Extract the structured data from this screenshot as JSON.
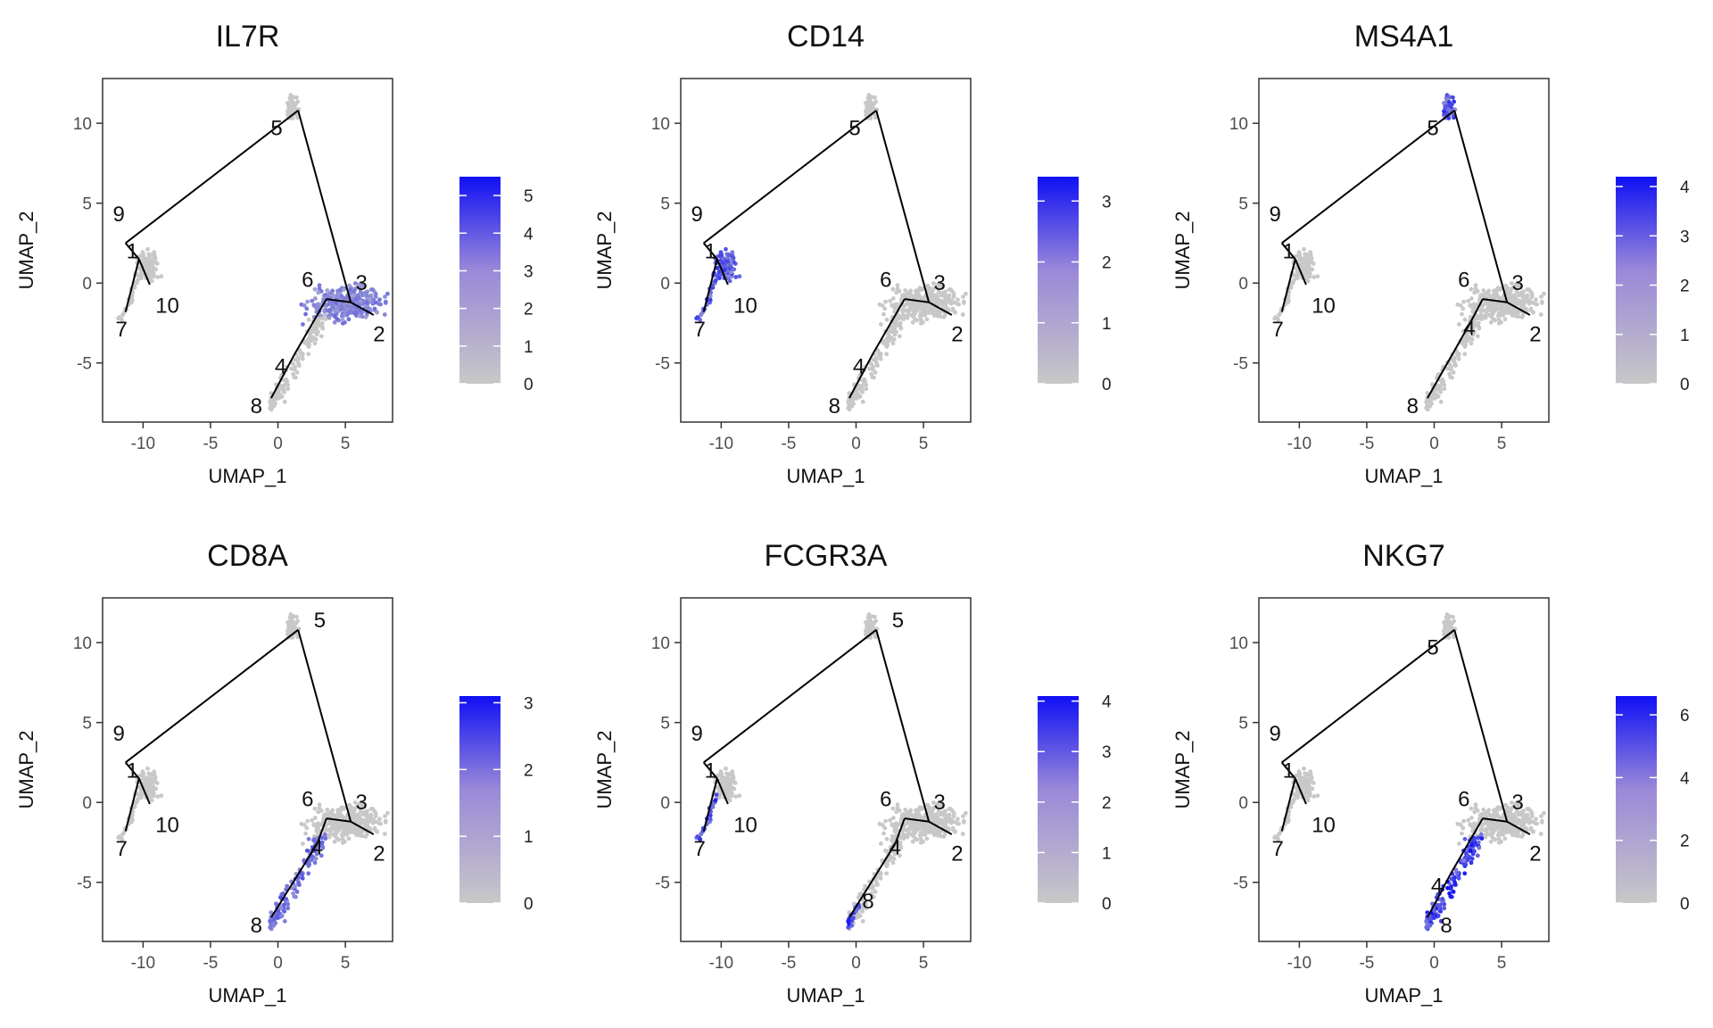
{
  "colors": {
    "low": "#c8c8c8",
    "high": "#1010f5",
    "path": "#000000",
    "frame": "#333333"
  },
  "chart_data": [
    {
      "type": "scatter",
      "title": "IL7R",
      "xlabel": "UMAP_1",
      "ylabel": "UMAP_2",
      "xlim": [
        -13,
        8.5
      ],
      "ylim": [
        -8.7,
        12.8
      ],
      "xticks": [
        -10,
        -5,
        0,
        5
      ],
      "yticks": [
        -5,
        0,
        5,
        10
      ],
      "colorbar": {
        "max": 5.5,
        "ticks": [
          0,
          1,
          2,
          3,
          4,
          5
        ]
      },
      "highlight": {
        "cluster": "hub",
        "level": 0.35
      },
      "nodes": [
        {
          "label": "1",
          "x": -10.3,
          "y": 1.5,
          "ann_x": -10.8,
          "ann_y": 2.0
        },
        {
          "label": "2",
          "x": 7.1,
          "y": -2.0,
          "ann_x": 7.5,
          "ann_y": -3.2
        },
        {
          "label": "3",
          "x": 5.4,
          "y": -1.2,
          "ann_x": 6.2,
          "ann_y": 0.0
        },
        {
          "label": "4",
          "x": 1.2,
          "y": -4.5,
          "ann_x": 0.2,
          "ann_y": -5.2
        },
        {
          "label": "5",
          "x": 1.5,
          "y": 10.8,
          "ann_x": -0.1,
          "ann_y": 9.7
        },
        {
          "label": "6",
          "x": 3.6,
          "y": -1.0,
          "ann_x": 2.2,
          "ann_y": 0.2
        },
        {
          "label": "7",
          "x": -11.3,
          "y": -1.8,
          "ann_x": -11.6,
          "ann_y": -2.9
        },
        {
          "label": "8",
          "x": -0.5,
          "y": -7.2,
          "ann_x": -1.6,
          "ann_y": -7.7
        },
        {
          "label": "9",
          "x": -11.3,
          "y": 2.5,
          "ann_x": -11.8,
          "ann_y": 4.3
        },
        {
          "label": "10",
          "x": -9.5,
          "y": -0.1,
          "ann_x": -8.2,
          "ann_y": -1.4
        }
      ]
    },
    {
      "type": "scatter",
      "title": "CD14",
      "xlabel": "UMAP_1",
      "ylabel": "UMAP_2",
      "xlim": [
        -13,
        8.5
      ],
      "ylim": [
        -8.7,
        12.8
      ],
      "xticks": [
        -10,
        -5,
        0,
        5
      ],
      "yticks": [
        -5,
        0,
        5,
        10
      ],
      "colorbar": {
        "max": 3.4,
        "ticks": [
          0,
          1,
          2,
          3
        ]
      },
      "highlight": {
        "cluster": "left",
        "level": 0.55
      },
      "nodes": [
        {
          "label": "1",
          "x": -10.3,
          "y": 1.5,
          "ann_x": -10.8,
          "ann_y": 2.0
        },
        {
          "label": "2",
          "x": 7.1,
          "y": -2.0,
          "ann_x": 7.5,
          "ann_y": -3.2
        },
        {
          "label": "3",
          "x": 5.4,
          "y": -1.2,
          "ann_x": 6.2,
          "ann_y": 0.0
        },
        {
          "label": "4",
          "x": 1.2,
          "y": -4.5,
          "ann_x": 0.2,
          "ann_y": -5.2
        },
        {
          "label": "5",
          "x": 1.5,
          "y": 10.8,
          "ann_x": -0.1,
          "ann_y": 9.7
        },
        {
          "label": "6",
          "x": 3.6,
          "y": -1.0,
          "ann_x": 2.2,
          "ann_y": 0.2
        },
        {
          "label": "7",
          "x": -11.3,
          "y": -1.8,
          "ann_x": -11.6,
          "ann_y": -2.9
        },
        {
          "label": "8",
          "x": -0.5,
          "y": -7.2,
          "ann_x": -1.6,
          "ann_y": -7.7
        },
        {
          "label": "9",
          "x": -11.3,
          "y": 2.5,
          "ann_x": -11.8,
          "ann_y": 4.3
        },
        {
          "label": "10",
          "x": -9.5,
          "y": -0.1,
          "ann_x": -8.2,
          "ann_y": -1.4
        }
      ]
    },
    {
      "type": "scatter",
      "title": "MS4A1",
      "xlabel": "UMAP_1",
      "ylabel": "UMAP_2",
      "xlim": [
        -13,
        8.5
      ],
      "ylim": [
        -8.7,
        12.8
      ],
      "xticks": [
        -10,
        -5,
        0,
        5
      ],
      "yticks": [
        -5,
        0,
        5,
        10
      ],
      "colorbar": {
        "max": 4.2,
        "ticks": [
          0,
          1,
          2,
          3,
          4
        ]
      },
      "highlight": {
        "cluster": "top",
        "level": 0.6
      },
      "nodes": [
        {
          "label": "1",
          "x": -10.3,
          "y": 1.5,
          "ann_x": -10.8,
          "ann_y": 2.0
        },
        {
          "label": "2",
          "x": 7.1,
          "y": -2.0,
          "ann_x": 7.5,
          "ann_y": -3.2
        },
        {
          "label": "3",
          "x": 5.4,
          "y": -1.2,
          "ann_x": 6.2,
          "ann_y": 0.0
        },
        {
          "label": "4",
          "x": 2.6,
          "y": -2.6,
          "ann_x": 2.6,
          "ann_y": -2.8
        },
        {
          "label": "5",
          "x": 1.5,
          "y": 10.8,
          "ann_x": -0.1,
          "ann_y": 9.7
        },
        {
          "label": "6",
          "x": 3.6,
          "y": -1.0,
          "ann_x": 2.2,
          "ann_y": 0.2
        },
        {
          "label": "7",
          "x": -11.3,
          "y": -1.8,
          "ann_x": -11.6,
          "ann_y": -2.9
        },
        {
          "label": "8",
          "x": -0.5,
          "y": -7.2,
          "ann_x": -1.6,
          "ann_y": -7.7
        },
        {
          "label": "9",
          "x": -11.3,
          "y": 2.5,
          "ann_x": -11.8,
          "ann_y": 4.3
        },
        {
          "label": "10",
          "x": -9.5,
          "y": -0.1,
          "ann_x": -8.2,
          "ann_y": -1.4
        }
      ]
    },
    {
      "type": "scatter",
      "title": "CD8A",
      "xlabel": "UMAP_1",
      "ylabel": "UMAP_2",
      "xlim": [
        -13,
        8.5
      ],
      "ylim": [
        -8.7,
        12.8
      ],
      "xticks": [
        -10,
        -5,
        0,
        5
      ],
      "yticks": [
        -5,
        0,
        5,
        10
      ],
      "colorbar": {
        "max": 3.1,
        "ticks": [
          0,
          1,
          2,
          3
        ]
      },
      "highlight": {
        "cluster": "lower",
        "level": 0.45
      },
      "nodes": [
        {
          "label": "1",
          "x": -10.3,
          "y": 1.5,
          "ann_x": -10.8,
          "ann_y": 2.0
        },
        {
          "label": "2",
          "x": 7.1,
          "y": -2.0,
          "ann_x": 7.5,
          "ann_y": -3.2
        },
        {
          "label": "3",
          "x": 5.4,
          "y": -1.2,
          "ann_x": 6.2,
          "ann_y": 0.0
        },
        {
          "label": "4",
          "x": 2.9,
          "y": -2.6,
          "ann_x": 2.9,
          "ann_y": -2.8
        },
        {
          "label": "5",
          "x": 1.5,
          "y": 10.8,
          "ann_x": 3.1,
          "ann_y": 11.4
        },
        {
          "label": "6",
          "x": 3.6,
          "y": -1.0,
          "ann_x": 2.2,
          "ann_y": 0.2
        },
        {
          "label": "7",
          "x": -11.3,
          "y": -1.8,
          "ann_x": -11.6,
          "ann_y": -2.9
        },
        {
          "label": "8",
          "x": -0.5,
          "y": -7.2,
          "ann_x": -1.6,
          "ann_y": -7.7
        },
        {
          "label": "9",
          "x": -11.3,
          "y": 2.5,
          "ann_x": -11.8,
          "ann_y": 4.3
        },
        {
          "label": "10",
          "x": -9.5,
          "y": -0.1,
          "ann_x": -8.2,
          "ann_y": -1.4
        }
      ]
    },
    {
      "type": "scatter",
      "title": "FCGR3A",
      "xlabel": "UMAP_1",
      "ylabel": "UMAP_2",
      "xlim": [
        -13,
        8.5
      ],
      "ylim": [
        -8.7,
        12.8
      ],
      "xticks": [
        -10,
        -5,
        0,
        5
      ],
      "yticks": [
        -5,
        0,
        5,
        10
      ],
      "colorbar": {
        "max": 4.1,
        "ticks": [
          0,
          1,
          2,
          3,
          4
        ]
      },
      "highlight": {
        "cluster": "tails",
        "level": 0.65
      },
      "nodes": [
        {
          "label": "1",
          "x": -10.3,
          "y": 1.5,
          "ann_x": -10.8,
          "ann_y": 2.0
        },
        {
          "label": "2",
          "x": 7.1,
          "y": -2.0,
          "ann_x": 7.5,
          "ann_y": -3.2
        },
        {
          "label": "3",
          "x": 5.4,
          "y": -1.2,
          "ann_x": 6.2,
          "ann_y": 0.0
        },
        {
          "label": "4",
          "x": 2.9,
          "y": -2.6,
          "ann_x": 2.9,
          "ann_y": -2.8
        },
        {
          "label": "5",
          "x": 1.5,
          "y": 10.8,
          "ann_x": 3.1,
          "ann_y": 11.4
        },
        {
          "label": "6",
          "x": 3.6,
          "y": -1.0,
          "ann_x": 2.2,
          "ann_y": 0.2
        },
        {
          "label": "7",
          "x": -11.3,
          "y": -1.8,
          "ann_x": -11.6,
          "ann_y": -2.9
        },
        {
          "label": "8",
          "x": -0.5,
          "y": -7.2,
          "ann_x": 0.9,
          "ann_y": -6.2
        },
        {
          "label": "9",
          "x": -11.3,
          "y": 2.5,
          "ann_x": -11.8,
          "ann_y": 4.3
        },
        {
          "label": "10",
          "x": -9.5,
          "y": -0.1,
          "ann_x": -8.2,
          "ann_y": -1.4
        }
      ]
    },
    {
      "type": "scatter",
      "title": "NKG7",
      "xlabel": "UMAP_1",
      "ylabel": "UMAP_2",
      "xlim": [
        -13,
        8.5
      ],
      "ylim": [
        -8.7,
        12.8
      ],
      "xticks": [
        -10,
        -5,
        0,
        5
      ],
      "yticks": [
        -5,
        0,
        5,
        10
      ],
      "colorbar": {
        "max": 6.6,
        "ticks": [
          0,
          2,
          4,
          6
        ]
      },
      "highlight": {
        "cluster": "lower",
        "level": 0.7
      },
      "nodes": [
        {
          "label": "1",
          "x": -10.3,
          "y": 1.5,
          "ann_x": -10.8,
          "ann_y": 2.0
        },
        {
          "label": "2",
          "x": 7.1,
          "y": -2.0,
          "ann_x": 7.5,
          "ann_y": -3.2
        },
        {
          "label": "3",
          "x": 5.4,
          "y": -1.2,
          "ann_x": 6.2,
          "ann_y": 0.0
        },
        {
          "label": "4",
          "x": 1.2,
          "y": -4.5,
          "ann_x": 0.2,
          "ann_y": -5.2
        },
        {
          "label": "5",
          "x": 1.5,
          "y": 10.8,
          "ann_x": -0.1,
          "ann_y": 9.7
        },
        {
          "label": "6",
          "x": 3.6,
          "y": -1.0,
          "ann_x": 2.2,
          "ann_y": 0.2
        },
        {
          "label": "7",
          "x": -11.3,
          "y": -1.8,
          "ann_x": -11.6,
          "ann_y": -2.9
        },
        {
          "label": "8",
          "x": -0.5,
          "y": -7.2,
          "ann_x": 0.9,
          "ann_y": -7.7
        },
        {
          "label": "9",
          "x": -11.3,
          "y": 2.5,
          "ann_x": -11.8,
          "ann_y": 4.3
        },
        {
          "label": "10",
          "x": -9.5,
          "y": -0.1,
          "ann_x": -8.2,
          "ann_y": -1.4
        }
      ]
    }
  ]
}
